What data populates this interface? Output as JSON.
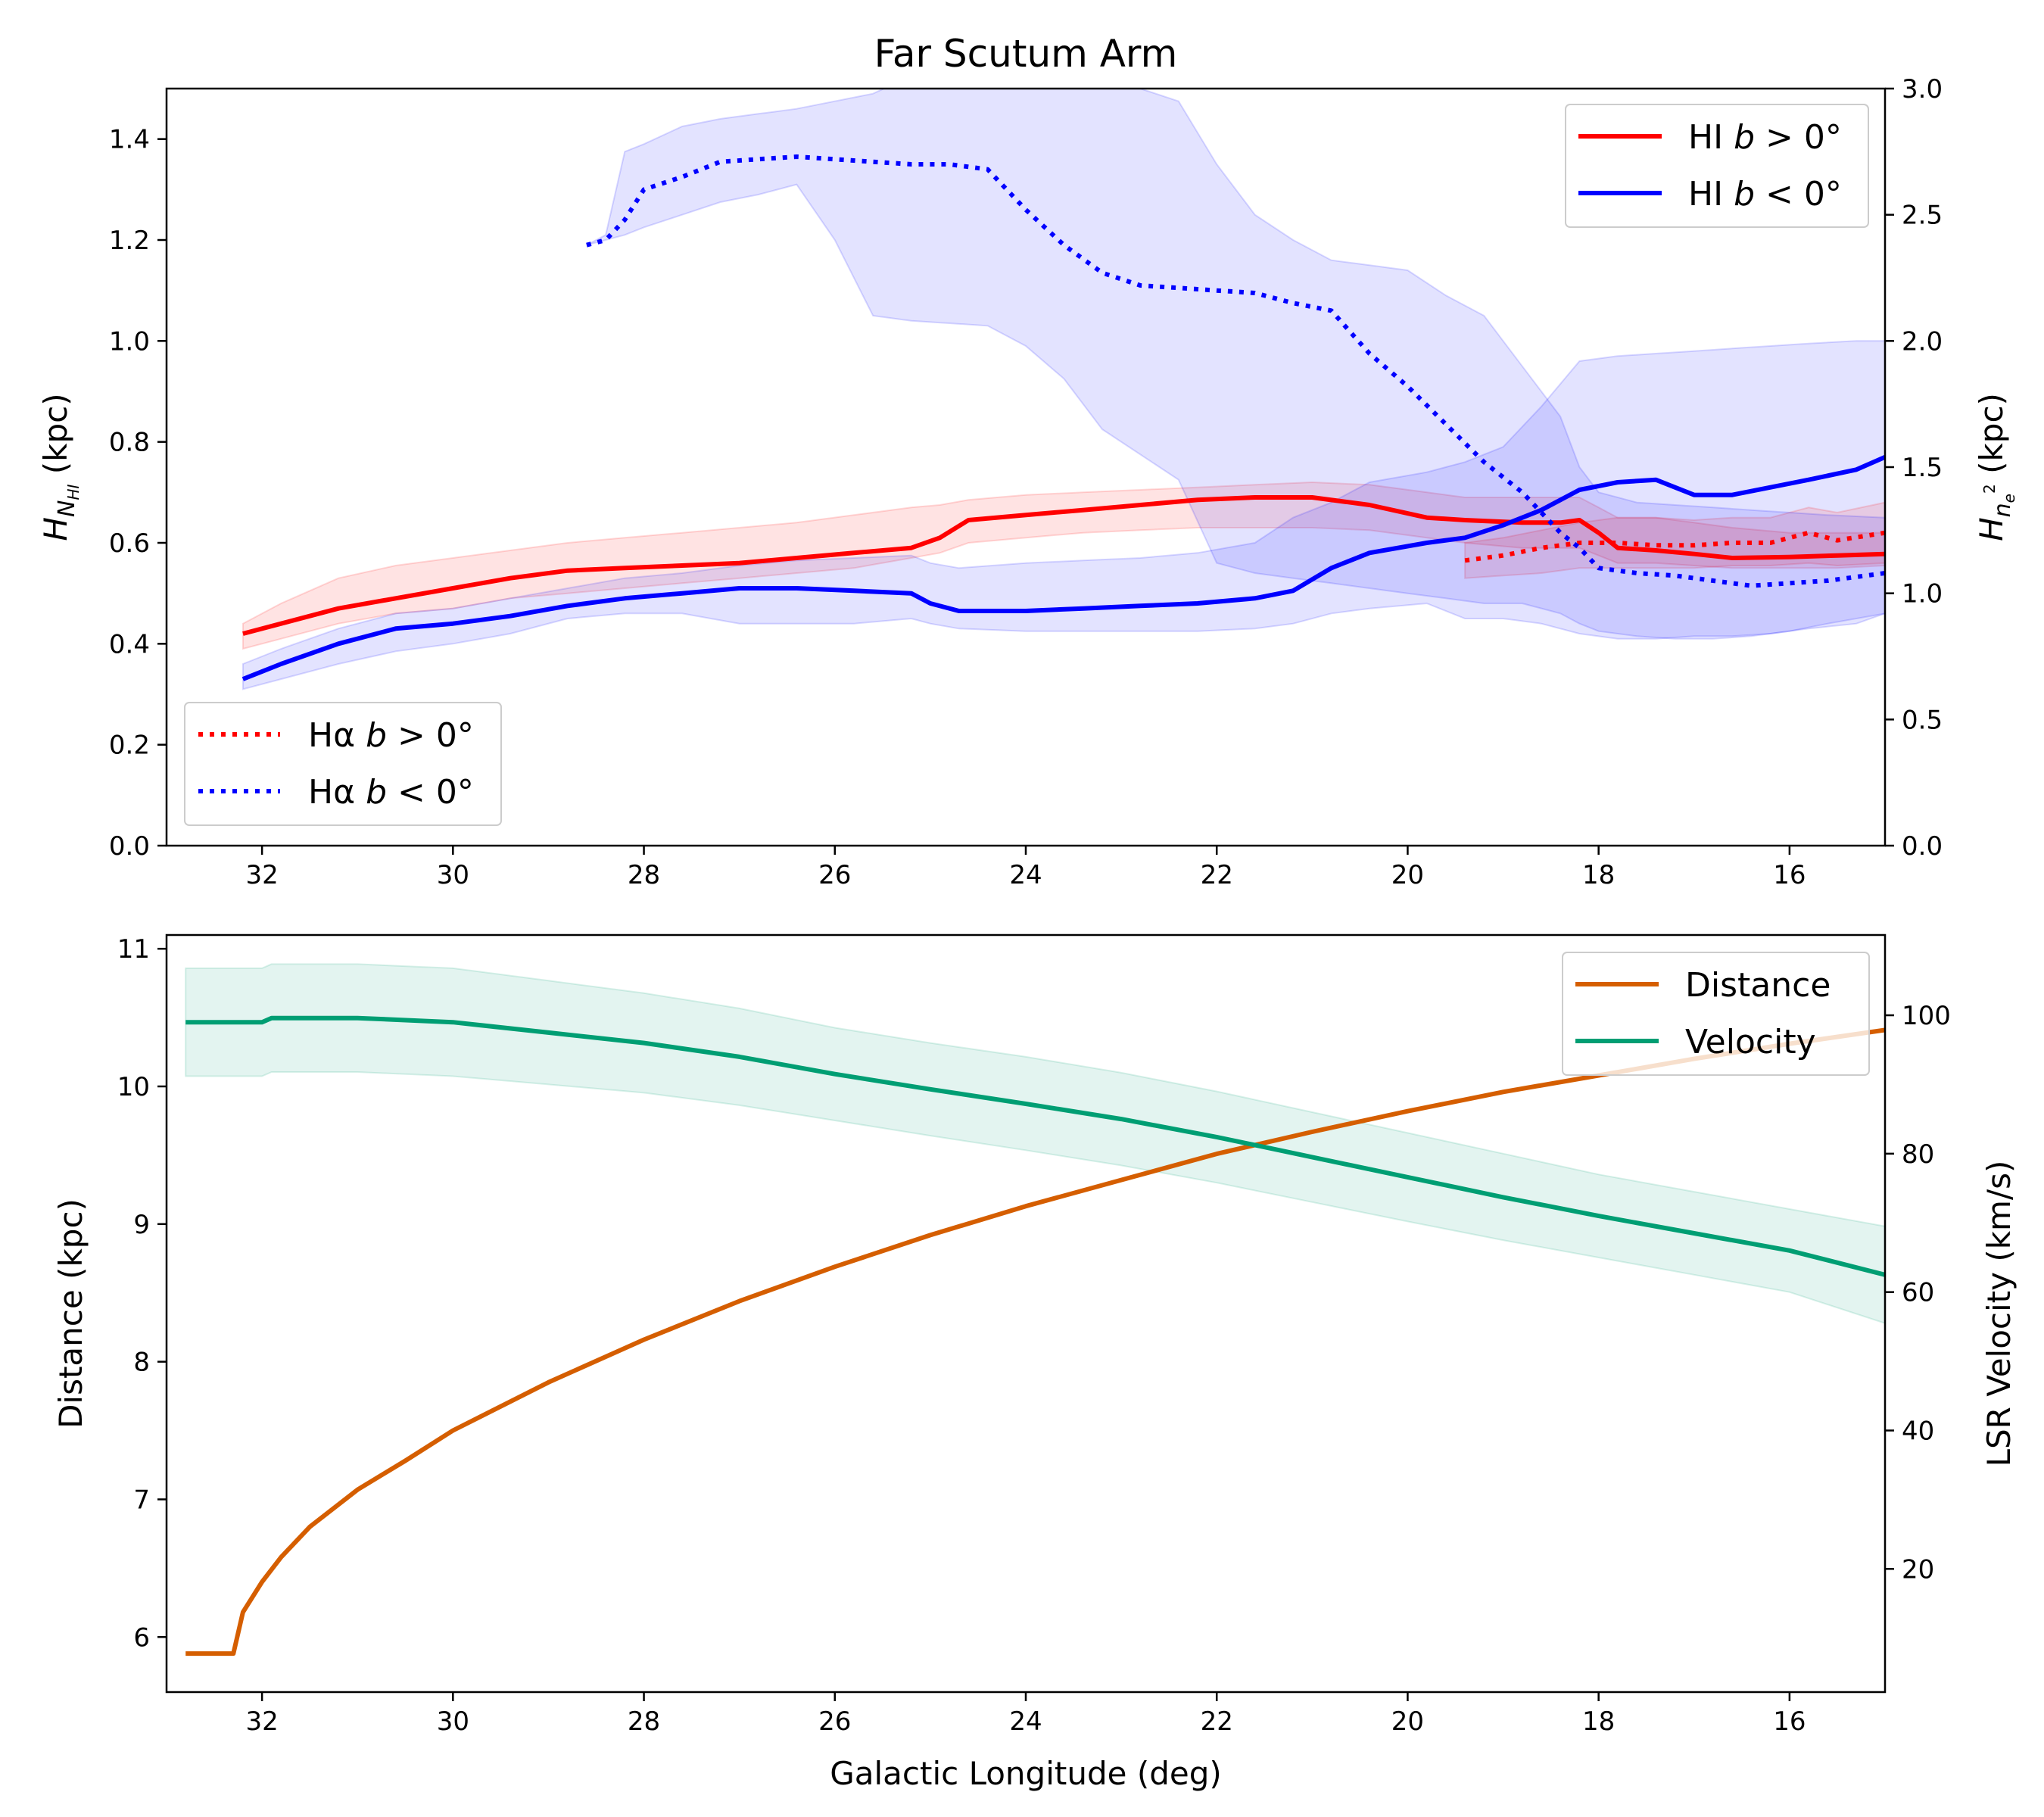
{
  "chart_data": [
    {
      "type": "line",
      "title": "Far Scutum Arm",
      "xlabel": "",
      "ylabel": "H_N_HI (kpc)",
      "ylabel_parts": {
        "main": "H",
        "sub": "N",
        "subsub": "HI",
        "unit": " (kpc)"
      },
      "ylabel_right": "H_n_e^2 (kpc)",
      "ylabel_right_parts": {
        "main": "H",
        "sub": "n",
        "subsub": "e",
        "sup": "2",
        "unit": " (kpc)"
      },
      "xlim": [
        33,
        15
      ],
      "ylim": [
        0,
        1.5
      ],
      "ylim_right": [
        0,
        3.0
      ],
      "x_ticks": [
        "32",
        "30",
        "28",
        "26",
        "24",
        "22",
        "20",
        "18",
        "16"
      ],
      "y_ticks": [
        "0.0",
        "0.2",
        "0.4",
        "0.6",
        "0.8",
        "1.0",
        "1.2",
        "1.4"
      ],
      "y_right_ticks": [
        "0.0",
        "0.5",
        "1.0",
        "1.5",
        "2.0",
        "2.5",
        "3.0"
      ],
      "grid": false,
      "legend_upper": {
        "placement": "upper right",
        "entries": [
          {
            "series": "hi_pos",
            "pre": "HI ",
            "italic": "b",
            "post": " > 0°",
            "color": "#ff0000",
            "style": "solid"
          },
          {
            "series": "hi_neg",
            "pre": "HI ",
            "italic": "b",
            "post": " < 0°",
            "color": "#0000ff",
            "style": "solid"
          }
        ]
      },
      "legend_lower": {
        "placement": "lower left",
        "entries": [
          {
            "series": "ha_pos",
            "pre": "Hα ",
            "italic": "b",
            "post": " > 0°",
            "color": "#ff0000",
            "style": "dotted"
          },
          {
            "series": "ha_neg",
            "pre": "Hα ",
            "italic": "b",
            "post": " < 0°",
            "color": "#0000ff",
            "style": "dotted"
          }
        ]
      },
      "series": [
        {
          "id": "hi_pos",
          "name": "HI b > 0°",
          "color": "#ff0000",
          "style": "solid",
          "axis": "left",
          "x": [
            32.2,
            31.8,
            31.2,
            30.6,
            30.0,
            29.4,
            28.8,
            28.2,
            27.6,
            27.0,
            26.4,
            25.8,
            25.2,
            24.9,
            24.6,
            24.0,
            23.4,
            22.8,
            22.2,
            21.6,
            21.0,
            20.4,
            19.8,
            19.4,
            18.8,
            18.4,
            18.2,
            18.0,
            17.8,
            17.4,
            17.0,
            16.6,
            16.0,
            15.5,
            15.0
          ],
          "y": [
            0.42,
            0.44,
            0.47,
            0.49,
            0.51,
            0.53,
            0.545,
            0.55,
            0.555,
            0.56,
            0.57,
            0.58,
            0.59,
            0.61,
            0.645,
            0.655,
            0.665,
            0.675,
            0.685,
            0.69,
            0.69,
            0.675,
            0.65,
            0.645,
            0.64,
            0.64,
            0.645,
            0.62,
            0.59,
            0.585,
            0.578,
            0.57,
            0.572,
            0.575,
            0.578
          ],
          "band_low": [
            0.39,
            0.41,
            0.44,
            0.46,
            0.47,
            0.49,
            0.5,
            0.51,
            0.52,
            0.53,
            0.54,
            0.55,
            0.57,
            0.58,
            0.6,
            0.61,
            0.62,
            0.625,
            0.63,
            0.63,
            0.63,
            0.625,
            0.61,
            0.6,
            0.59,
            0.59,
            0.59,
            0.575,
            0.56,
            0.56,
            0.555,
            0.55,
            0.55,
            0.55,
            0.555
          ],
          "band_high": [
            0.44,
            0.48,
            0.53,
            0.555,
            0.57,
            0.585,
            0.6,
            0.61,
            0.62,
            0.63,
            0.64,
            0.655,
            0.67,
            0.675,
            0.685,
            0.695,
            0.7,
            0.705,
            0.71,
            0.715,
            0.72,
            0.715,
            0.7,
            0.69,
            0.69,
            0.69,
            0.69,
            0.67,
            0.65,
            0.65,
            0.64,
            0.63,
            0.62,
            0.62,
            0.62
          ]
        },
        {
          "id": "hi_neg",
          "name": "HI b < 0°",
          "color": "#0000ff",
          "style": "solid",
          "axis": "left",
          "x": [
            32.2,
            31.8,
            31.2,
            30.6,
            30.0,
            29.4,
            28.8,
            28.2,
            27.6,
            27.0,
            26.4,
            25.8,
            25.2,
            25.0,
            24.7,
            24.0,
            23.4,
            22.8,
            22.2,
            21.6,
            21.2,
            20.8,
            20.4,
            19.8,
            19.4,
            19.0,
            18.6,
            18.2,
            17.8,
            17.4,
            17.0,
            16.6,
            16.2,
            15.8,
            15.3,
            15.0
          ],
          "y": [
            0.33,
            0.36,
            0.4,
            0.43,
            0.44,
            0.455,
            0.475,
            0.49,
            0.5,
            0.51,
            0.51,
            0.505,
            0.5,
            0.48,
            0.465,
            0.465,
            0.47,
            0.475,
            0.48,
            0.49,
            0.505,
            0.55,
            0.58,
            0.6,
            0.61,
            0.635,
            0.665,
            0.705,
            0.72,
            0.725,
            0.695,
            0.695,
            0.71,
            0.725,
            0.745,
            0.77
          ],
          "band_low": [
            0.31,
            0.33,
            0.36,
            0.385,
            0.4,
            0.42,
            0.45,
            0.46,
            0.46,
            0.44,
            0.44,
            0.44,
            0.45,
            0.44,
            0.43,
            0.425,
            0.425,
            0.425,
            0.425,
            0.43,
            0.44,
            0.46,
            0.47,
            0.48,
            0.45,
            0.45,
            0.44,
            0.42,
            0.41,
            0.41,
            0.415,
            0.415,
            0.42,
            0.43,
            0.44,
            0.46
          ],
          "band_high": [
            0.36,
            0.39,
            0.43,
            0.46,
            0.47,
            0.49,
            0.51,
            0.53,
            0.54,
            0.555,
            0.565,
            0.57,
            0.575,
            0.56,
            0.55,
            0.56,
            0.565,
            0.57,
            0.58,
            0.6,
            0.65,
            0.68,
            0.72,
            0.74,
            0.76,
            0.79,
            0.87,
            0.96,
            0.97,
            0.975,
            0.98,
            0.985,
            0.99,
            0.995,
            1.0,
            1.0
          ]
        },
        {
          "id": "ha_pos",
          "name": "Hα b > 0°",
          "color": "#ff0000",
          "style": "dotted",
          "axis": "right",
          "x": [
            19.4,
            19.0,
            18.6,
            18.2,
            17.8,
            17.4,
            17.0,
            16.6,
            16.2,
            15.8,
            15.5,
            15.0
          ],
          "y": [
            1.13,
            1.15,
            1.18,
            1.2,
            1.2,
            1.19,
            1.19,
            1.2,
            1.2,
            1.24,
            1.21,
            1.24
          ],
          "band_low": [
            1.06,
            1.07,
            1.08,
            1.1,
            1.1,
            1.1,
            1.1,
            1.11,
            1.11,
            1.12,
            1.11,
            1.12
          ],
          "band_high": [
            1.2,
            1.22,
            1.25,
            1.28,
            1.3,
            1.3,
            1.29,
            1.3,
            1.3,
            1.34,
            1.32,
            1.36
          ]
        },
        {
          "id": "ha_neg",
          "name": "Hα b < 0°",
          "color": "#0000ff",
          "style": "dotted",
          "axis": "right",
          "x": [
            28.6,
            28.4,
            28.2,
            28.0,
            27.6,
            27.2,
            26.8,
            26.4,
            26.0,
            25.6,
            25.2,
            24.8,
            24.4,
            24.0,
            23.6,
            23.2,
            22.8,
            22.4,
            22.0,
            21.6,
            21.2,
            20.8,
            20.4,
            20.0,
            19.6,
            19.2,
            18.8,
            18.4,
            18.2,
            18.0,
            17.6,
            17.2,
            16.8,
            16.4,
            16.0,
            15.6,
            15.0
          ],
          "y": [
            2.38,
            2.4,
            2.48,
            2.6,
            2.65,
            2.71,
            2.72,
            2.73,
            2.72,
            2.71,
            2.7,
            2.7,
            2.68,
            2.52,
            2.38,
            2.27,
            2.22,
            2.21,
            2.2,
            2.19,
            2.15,
            2.12,
            1.95,
            1.82,
            1.67,
            1.52,
            1.4,
            1.24,
            1.18,
            1.1,
            1.08,
            1.07,
            1.05,
            1.03,
            1.04,
            1.05,
            1.08
          ],
          "band_low": [
            2.38,
            2.4,
            2.42,
            2.45,
            2.5,
            2.55,
            2.58,
            2.62,
            2.4,
            2.1,
            2.08,
            2.07,
            2.06,
            1.98,
            1.85,
            1.65,
            1.55,
            1.45,
            1.12,
            1.08,
            1.06,
            1.04,
            1.02,
            1.0,
            0.98,
            0.96,
            0.96,
            0.92,
            0.88,
            0.85,
            0.83,
            0.82,
            0.82,
            0.83,
            0.85,
            0.88,
            0.92
          ],
          "band_high": [
            2.38,
            2.42,
            2.75,
            2.78,
            2.85,
            2.88,
            2.9,
            2.92,
            2.95,
            2.98,
            3.05,
            3.05,
            3.05,
            3.05,
            3.05,
            3.05,
            3.0,
            2.95,
            2.7,
            2.5,
            2.4,
            2.32,
            2.3,
            2.28,
            2.18,
            2.1,
            1.9,
            1.7,
            1.5,
            1.4,
            1.36,
            1.35,
            1.34,
            1.33,
            1.32,
            1.31,
            1.3
          ]
        }
      ]
    },
    {
      "type": "line",
      "title": "",
      "xlabel": "Galactic Longitude (deg)",
      "ylabel": "Distance (kpc)",
      "ylabel_right": "LSR Velocity (km/s)",
      "xlim": [
        33,
        15
      ],
      "ylim": [
        5.6,
        11.1
      ],
      "ylim_right": [
        2.2,
        111.6
      ],
      "x_ticks": [
        "32",
        "30",
        "28",
        "26",
        "24",
        "22",
        "20",
        "18",
        "16"
      ],
      "y_ticks": [
        "6",
        "7",
        "8",
        "9",
        "10",
        "11"
      ],
      "y_right_ticks": [
        "20",
        "40",
        "60",
        "80",
        "100"
      ],
      "grid": false,
      "legend": {
        "placement": "upper right",
        "entries": [
          {
            "series": "distance",
            "label": "Distance",
            "color": "#d55e00"
          },
          {
            "series": "velocity",
            "label": "Velocity",
            "color": "#009e73"
          }
        ]
      },
      "series": [
        {
          "id": "distance",
          "name": "Distance",
          "color": "#d55e00",
          "axis": "left",
          "x": [
            32.8,
            32.3,
            32.2,
            32.0,
            31.8,
            31.5,
            31.0,
            30.5,
            30.0,
            29.0,
            28.0,
            27.0,
            26.0,
            25.0,
            24.0,
            23.0,
            22.0,
            21.0,
            20.0,
            19.0,
            18.0,
            17.0,
            16.0,
            15.0
          ],
          "y": [
            5.88,
            5.88,
            6.18,
            6.4,
            6.58,
            6.8,
            7.07,
            7.28,
            7.5,
            7.85,
            8.16,
            8.44,
            8.69,
            8.92,
            9.13,
            9.32,
            9.51,
            9.67,
            9.82,
            9.96,
            10.08,
            10.2,
            10.31,
            10.41
          ]
        },
        {
          "id": "velocity",
          "name": "Velocity",
          "color": "#009e73",
          "axis": "right",
          "x": [
            32.8,
            32.0,
            31.9,
            31.0,
            30.0,
            29.0,
            28.0,
            27.0,
            26.0,
            25.0,
            24.0,
            23.0,
            22.0,
            21.0,
            20.0,
            19.0,
            18.0,
            17.0,
            16.0,
            15.0
          ],
          "y": [
            99.0,
            99.0,
            99.6,
            99.6,
            99.0,
            97.5,
            96.0,
            94.0,
            91.5,
            89.3,
            87.2,
            85.0,
            82.4,
            79.5,
            76.6,
            73.7,
            71.0,
            68.5,
            66.0,
            62.5
          ],
          "band_low": [
            91.2,
            91.2,
            91.8,
            91.8,
            91.2,
            90.0,
            88.8,
            87.0,
            84.8,
            82.6,
            80.5,
            78.3,
            75.8,
            73.0,
            70.2,
            67.5,
            65.0,
            62.5,
            60.0,
            55.5
          ],
          "band_high": [
            106.8,
            106.8,
            107.4,
            107.4,
            106.8,
            105.0,
            103.2,
            101.0,
            98.2,
            96.0,
            94.0,
            91.7,
            89.0,
            86.0,
            83.0,
            80.0,
            77.0,
            74.5,
            72.0,
            69.5
          ]
        }
      ]
    }
  ]
}
